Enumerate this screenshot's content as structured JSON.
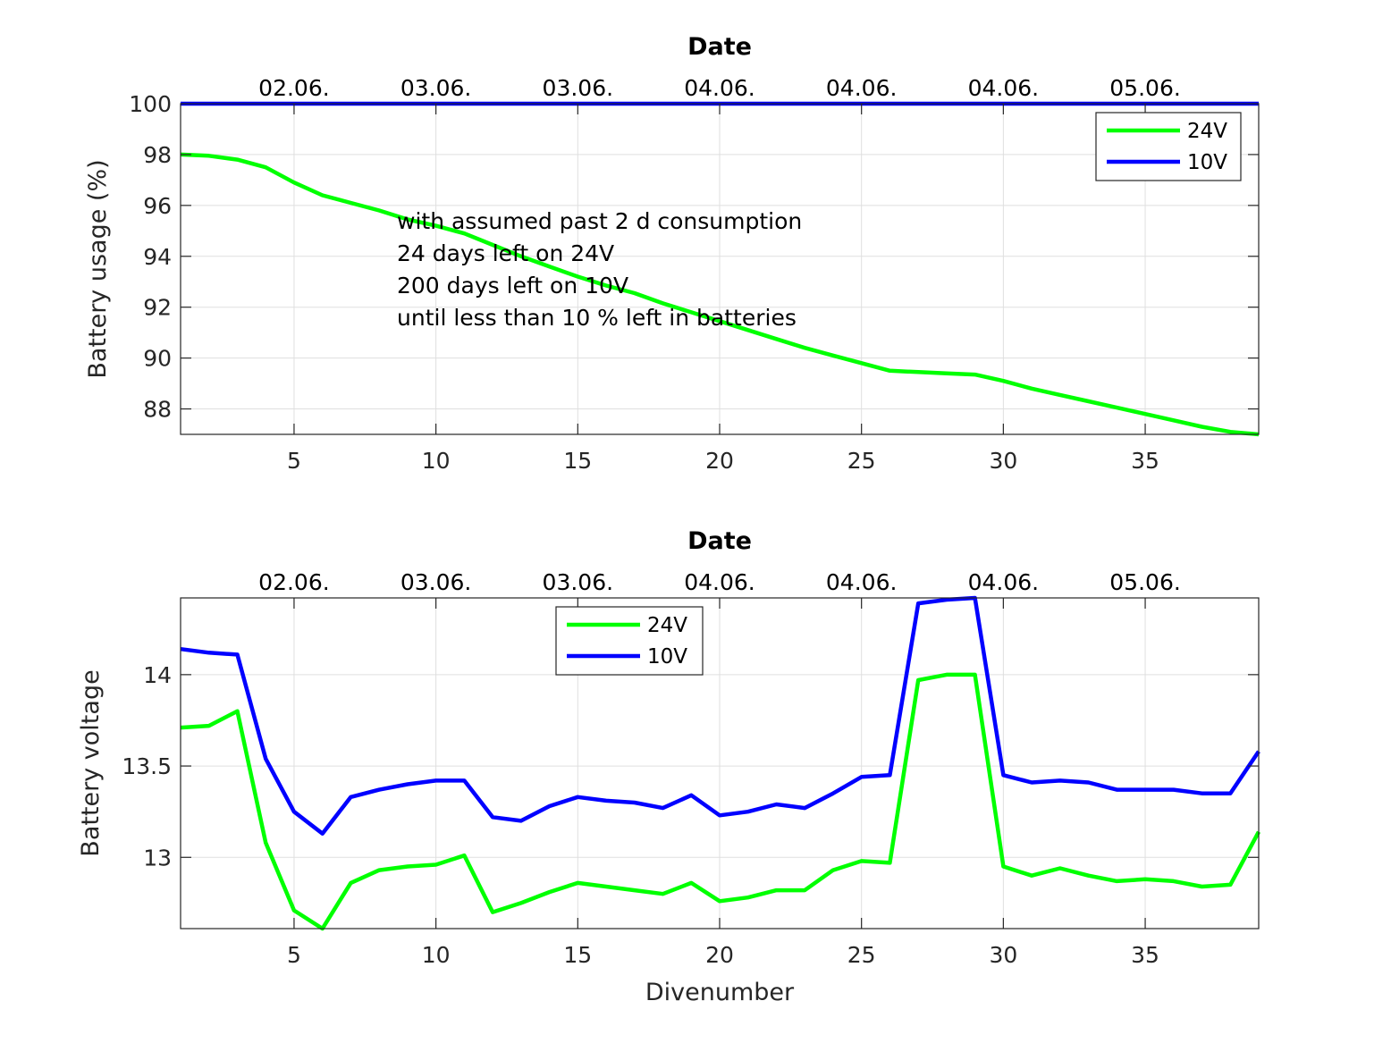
{
  "chart_data": [
    {
      "type": "line",
      "title": "Date",
      "xlabel": "",
      "ylabel": "Battery usage (%)",
      "xlim": [
        1,
        39
      ],
      "ylim": [
        87,
        100
      ],
      "xticks": [
        5,
        10,
        15,
        20,
        25,
        30,
        35
      ],
      "yticks": [
        88,
        90,
        92,
        94,
        96,
        98,
        100
      ],
      "top_tick_labels": [
        "02.06.",
        "03.06.",
        "03.06.",
        "04.06.",
        "04.06.",
        "04.06.",
        "05.06."
      ],
      "grid": true,
      "legend_position": "top-right",
      "x": [
        1,
        2,
        3,
        4,
        5,
        6,
        7,
        8,
        9,
        10,
        11,
        12,
        13,
        14,
        15,
        16,
        17,
        18,
        19,
        20,
        21,
        22,
        23,
        24,
        25,
        26,
        27,
        28,
        29,
        30,
        31,
        32,
        33,
        34,
        35,
        36,
        37,
        38,
        39
      ],
      "series": [
        {
          "name": "24V",
          "color": "#00ff00",
          "values": [
            98.0,
            97.95,
            97.8,
            97.5,
            96.9,
            96.4,
            96.1,
            95.8,
            95.45,
            95.2,
            94.9,
            94.45,
            94.0,
            93.6,
            93.2,
            92.85,
            92.55,
            92.15,
            91.8,
            91.45,
            91.1,
            90.75,
            90.4,
            90.1,
            89.8,
            89.5,
            89.45,
            89.4,
            89.35,
            89.1,
            88.8,
            88.55,
            88.3,
            88.05,
            87.8,
            87.55,
            87.3,
            87.1,
            87.0
          ]
        },
        {
          "name": "10V",
          "color": "#0000ff",
          "values": [
            100,
            100,
            100,
            100,
            100,
            100,
            100,
            100,
            100,
            100,
            100,
            100,
            100,
            100,
            100,
            100,
            100,
            100,
            100,
            100,
            100,
            100,
            100,
            100,
            100,
            100,
            100,
            100,
            100,
            100,
            100,
            100,
            100,
            100,
            100,
            100,
            100,
            100,
            100
          ]
        }
      ],
      "annotation": [
        "with assumed past 2 d consumption",
        "24 days left on 24V",
        "200 days left on 10V",
        "until less than 10 % left in batteries"
      ]
    },
    {
      "type": "line",
      "title": "Date",
      "xlabel": "Divenumber",
      "ylabel": "Battery voltage",
      "xlim": [
        1,
        39
      ],
      "ylim": [
        12.61,
        14.42
      ],
      "xticks": [
        5,
        10,
        15,
        20,
        25,
        30,
        35
      ],
      "yticks": [
        13,
        13.5,
        14
      ],
      "ytick_labels": [
        "13",
        "13.5",
        "14"
      ],
      "top_tick_labels": [
        "02.06.",
        "03.06.",
        "03.06.",
        "04.06.",
        "04.06.",
        "04.06.",
        "05.06."
      ],
      "grid": true,
      "legend_position": "top-center",
      "x": [
        1,
        2,
        3,
        4,
        5,
        6,
        7,
        8,
        9,
        10,
        11,
        12,
        13,
        14,
        15,
        16,
        17,
        18,
        19,
        20,
        21,
        22,
        23,
        24,
        25,
        26,
        27,
        28,
        29,
        30,
        31,
        32,
        33,
        34,
        35,
        36,
        37,
        38,
        39
      ],
      "series": [
        {
          "name": "24V",
          "color": "#00ff00",
          "values": [
            13.71,
            13.72,
            13.8,
            13.08,
            12.71,
            12.61,
            12.86,
            12.93,
            12.95,
            12.96,
            13.01,
            12.7,
            12.75,
            12.81,
            12.86,
            12.84,
            12.82,
            12.8,
            12.86,
            12.76,
            12.78,
            12.82,
            12.82,
            12.93,
            12.98,
            12.97,
            13.97,
            14.0,
            14.0,
            12.95,
            12.9,
            12.94,
            12.9,
            12.87,
            12.88,
            12.87,
            12.84,
            12.85,
            13.14
          ]
        },
        {
          "name": "10V",
          "color": "#0000ff",
          "values": [
            14.14,
            14.12,
            14.11,
            13.54,
            13.25,
            13.13,
            13.33,
            13.37,
            13.4,
            13.42,
            13.42,
            13.22,
            13.2,
            13.28,
            13.33,
            13.31,
            13.3,
            13.27,
            13.34,
            13.23,
            13.25,
            13.29,
            13.27,
            13.35,
            13.44,
            13.45,
            14.39,
            14.41,
            14.42,
            13.45,
            13.41,
            13.42,
            13.41,
            13.37,
            13.37,
            13.37,
            13.35,
            13.35,
            13.58
          ]
        }
      ]
    }
  ]
}
